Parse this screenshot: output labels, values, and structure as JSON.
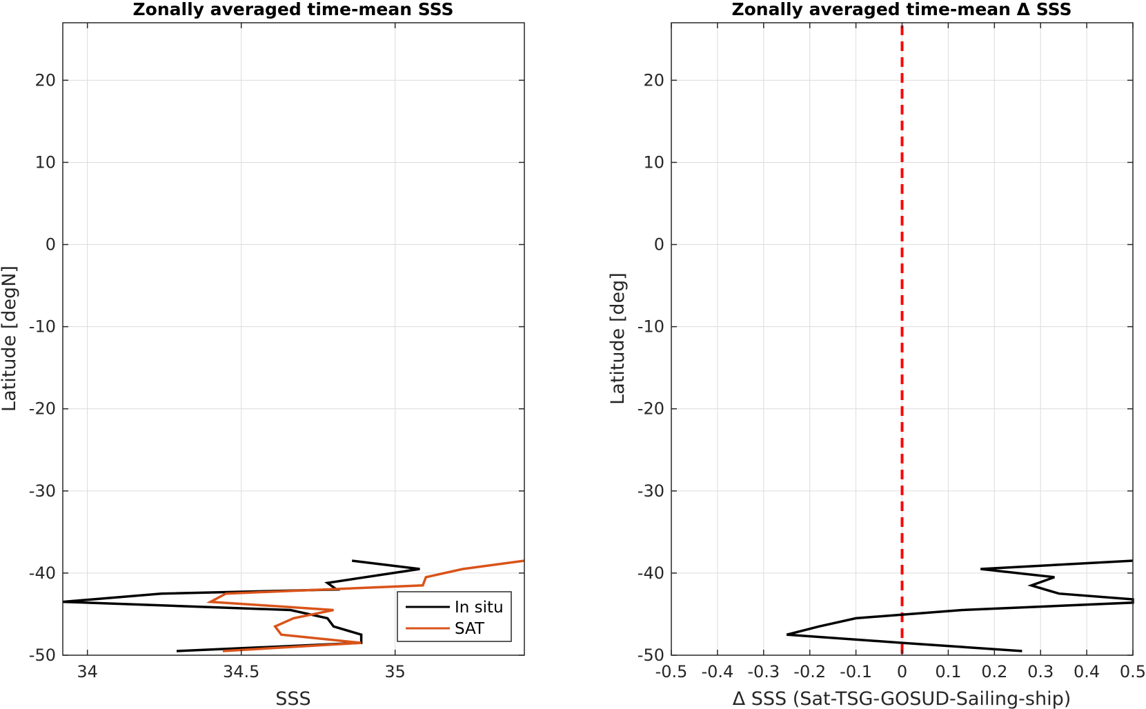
{
  "chart_data": [
    {
      "type": "line",
      "title": "Zonally averaged time-mean SSS",
      "xlabel": "SSS",
      "ylabel": "Latitude [degN]",
      "xlim": [
        33.92,
        35.42
      ],
      "ylim": [
        -50,
        27
      ],
      "xticks": [
        34,
        34.5,
        35
      ],
      "xtick_labels": [
        "34",
        "34.5",
        "35"
      ],
      "yticks": [
        -50,
        -40,
        -30,
        -20,
        -10,
        0,
        10,
        20
      ],
      "ytick_labels": [
        "-50",
        "-40",
        "-30",
        "-20",
        "-10",
        "0",
        "10",
        "20"
      ],
      "grid": true,
      "legend_position": "bottom-right",
      "series": [
        {
          "name": "In situ",
          "color": "#000000",
          "points": [
            [
              34.86,
              -38.5
            ],
            [
              35.08,
              -39.5
            ],
            [
              34.78,
              -41.2
            ],
            [
              34.81,
              -42.0
            ],
            [
              34.24,
              -42.5
            ],
            [
              33.92,
              -43.5
            ],
            [
              34.66,
              -44.5
            ],
            [
              34.78,
              -45.5
            ],
            [
              34.8,
              -46.5
            ],
            [
              34.89,
              -47.5
            ],
            [
              34.89,
              -48.5
            ],
            [
              34.29,
              -49.5
            ]
          ]
        },
        {
          "name": "SAT",
          "color": "#d95319",
          "points": [
            [
              35.42,
              -38.5
            ],
            [
              35.22,
              -39.5
            ],
            [
              35.1,
              -40.5
            ],
            [
              35.09,
              -41.5
            ],
            [
              34.45,
              -42.5
            ],
            [
              34.4,
              -43.5
            ],
            [
              34.8,
              -44.5
            ],
            [
              34.67,
              -45.5
            ],
            [
              34.61,
              -46.5
            ],
            [
              34.63,
              -47.5
            ],
            [
              34.89,
              -48.5
            ],
            [
              34.44,
              -49.5
            ]
          ]
        }
      ]
    },
    {
      "type": "line",
      "title": "Zonally averaged time-mean Δ SSS",
      "xlabel": "Δ SSS (Sat-TSG-GOSUD-Sailing-ship)",
      "ylabel": "Latitude [deg]",
      "xlim": [
        -0.5,
        0.5
      ],
      "ylim": [
        -50,
        27
      ],
      "xticks": [
        -0.5,
        -0.4,
        -0.3,
        -0.2,
        -0.1,
        0,
        0.1,
        0.2,
        0.3,
        0.4,
        0.5
      ],
      "xtick_labels": [
        "-0.5",
        "-0.4",
        "-0.3",
        "-0.2",
        "-0.1",
        "0",
        "0.1",
        "0.2",
        "0.3",
        "0.4",
        "0.5"
      ],
      "yticks": [
        -50,
        -40,
        -30,
        -20,
        -10,
        0,
        10,
        20
      ],
      "ytick_labels": [
        "-50",
        "-40",
        "-30",
        "-20",
        "-10",
        "0",
        "10",
        "20"
      ],
      "grid": true,
      "reference_line": {
        "x": 0,
        "color": "#ff0000",
        "style": "dashed"
      },
      "series": [
        {
          "color": "#000000",
          "points": [
            [
              0.5,
              -38.5
            ],
            [
              0.17,
              -39.5
            ],
            [
              0.33,
              -40.5
            ],
            [
              0.28,
              -41.5
            ],
            [
              0.34,
              -42.5
            ],
            [
              0.5,
              -43.2
            ],
            [
              0.5,
              -43.6
            ],
            [
              0.13,
              -44.5
            ],
            [
              -0.1,
              -45.5
            ],
            [
              -0.18,
              -46.5
            ],
            [
              -0.25,
              -47.5
            ],
            [
              0.0,
              -48.5
            ],
            [
              0.26,
              -49.5
            ]
          ]
        }
      ]
    }
  ]
}
